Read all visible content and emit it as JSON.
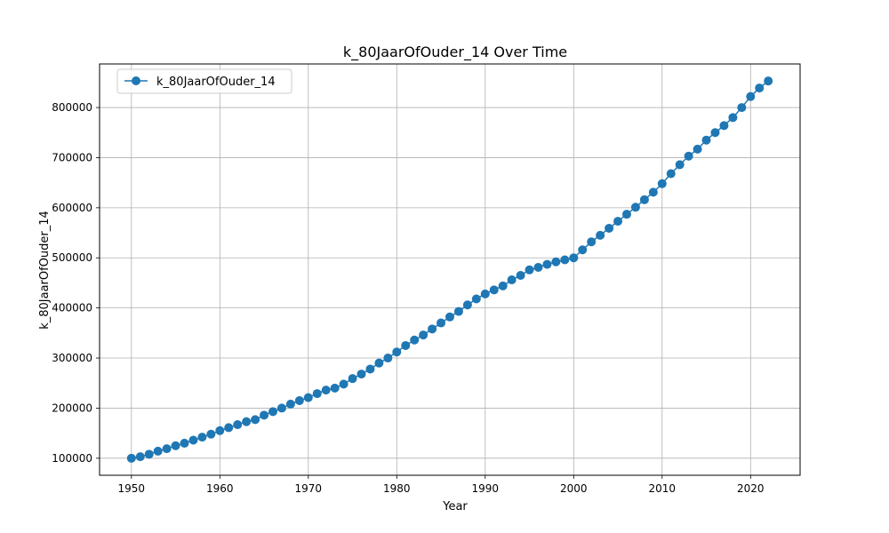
{
  "chart_data": {
    "type": "line",
    "title": "k_80JaarOfOuder_14 Over Time",
    "xlabel": "Year",
    "ylabel": "k_80JaarOfOuder_14",
    "xlim": [
      1946.4,
      2025.6
    ],
    "ylim": [
      66000,
      887000
    ],
    "xticks": [
      1950,
      1960,
      1970,
      1980,
      1990,
      2000,
      2010,
      2020
    ],
    "yticks": [
      100000,
      200000,
      300000,
      400000,
      500000,
      600000,
      700000,
      800000
    ],
    "grid": true,
    "legend": "top-left",
    "x": [
      1950,
      1951,
      1952,
      1953,
      1954,
      1955,
      1956,
      1957,
      1958,
      1959,
      1960,
      1961,
      1962,
      1963,
      1964,
      1965,
      1966,
      1967,
      1968,
      1969,
      1970,
      1971,
      1972,
      1973,
      1974,
      1975,
      1976,
      1977,
      1978,
      1979,
      1980,
      1981,
      1982,
      1983,
      1984,
      1985,
      1986,
      1987,
      1988,
      1989,
      1990,
      1991,
      1992,
      1993,
      1994,
      1995,
      1996,
      1997,
      1998,
      1999,
      2000,
      2001,
      2002,
      2003,
      2004,
      2005,
      2006,
      2007,
      2008,
      2009,
      2010,
      2011,
      2012,
      2013,
      2014,
      2015,
      2016,
      2017,
      2018,
      2019,
      2020,
      2021,
      2022
    ],
    "series": [
      {
        "name": "k_80JaarOfOuder_14",
        "color": "#1f77b4",
        "values": [
          100000,
          103000,
          108000,
          114000,
          119000,
          125000,
          130000,
          136000,
          142000,
          148000,
          155000,
          161000,
          167000,
          173000,
          177000,
          186000,
          193000,
          200000,
          208000,
          215000,
          221000,
          229000,
          236000,
          240000,
          248000,
          259000,
          268000,
          278000,
          290000,
          300000,
          312000,
          325000,
          336000,
          346000,
          358000,
          370000,
          382000,
          393000,
          406000,
          418000,
          428000,
          436000,
          444000,
          456000,
          465000,
          476000,
          481000,
          487000,
          492000,
          496000,
          500000,
          516000,
          532000,
          545000,
          559000,
          573000,
          587000,
          601000,
          616000,
          631000,
          648000,
          668000,
          686000,
          703000,
          717000,
          735000,
          750000,
          764000,
          780000,
          800000,
          822000,
          839000,
          853000
        ]
      }
    ]
  }
}
